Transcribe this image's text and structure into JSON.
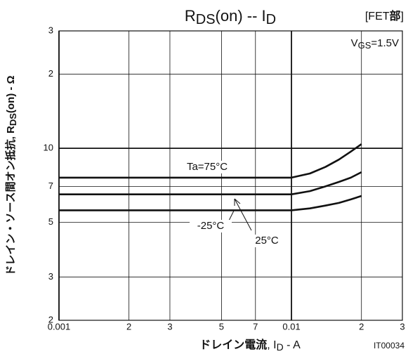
{
  "chart_data": {
    "type": "line",
    "title": [
      {
        "text": "R"
      },
      {
        "text": "DS",
        "sub": true
      },
      {
        "text": "(on)  --  I"
      },
      {
        "text": "D",
        "sub": true
      }
    ],
    "tag": [
      {
        "text": "[FET"
      },
      {
        "text": "部",
        "bold": true
      },
      {
        "text": "]"
      }
    ],
    "condition": [
      {
        "text": "V"
      },
      {
        "text": "GS",
        "sub": true
      },
      {
        "text": "=1.5V"
      }
    ],
    "y_label": [
      {
        "text": "ドレイン・ソース間オン抵抗, R"
      },
      {
        "text": "DS",
        "sub": true
      },
      {
        "text": "(on) - Ω"
      }
    ],
    "x_label": [
      {
        "text": "ドレイン電流",
        "bold": true
      },
      {
        "text": ", I"
      },
      {
        "text": "D",
        "sub": true
      },
      {
        "text": " - A"
      }
    ],
    "figure_id": "IT00034",
    "x": [
      0.001,
      0.01,
      0.012,
      0.014,
      0.016,
      0.018,
      0.02
    ],
    "series": [
      {
        "name": "Ta=75°C",
        "color": "#111111",
        "values": [
          7.6,
          7.6,
          7.9,
          8.4,
          9.0,
          9.7,
          10.4
        ]
      },
      {
        "name": "25°C",
        "color": "#111111",
        "values": [
          6.5,
          6.5,
          6.7,
          7.0,
          7.3,
          7.6,
          8.0
        ]
      },
      {
        "name": "-25°C",
        "color": "#111111",
        "values": [
          5.6,
          5.6,
          5.7,
          5.85,
          6.0,
          6.2,
          6.4
        ]
      }
    ],
    "xlim": [
      0.001,
      0.03
    ],
    "ylim": [
      2,
      30
    ],
    "xticks": [
      0.001,
      {
        "value": 0.002,
        "label": "2"
      },
      {
        "value": 0.003,
        "label": "3"
      },
      {
        "value": 0.005,
        "label": "5"
      },
      {
        "value": 0.007,
        "label": "7"
      },
      0.01,
      {
        "value": 0.02,
        "label": "2"
      },
      {
        "value": 0.03,
        "label": "3"
      }
    ],
    "yticks": [
      2,
      3,
      5,
      7,
      10,
      {
        "value": 20,
        "label": "2"
      },
      {
        "value": 30,
        "label": "3"
      }
    ],
    "log_x": true,
    "log_y": true,
    "grid": true
  }
}
